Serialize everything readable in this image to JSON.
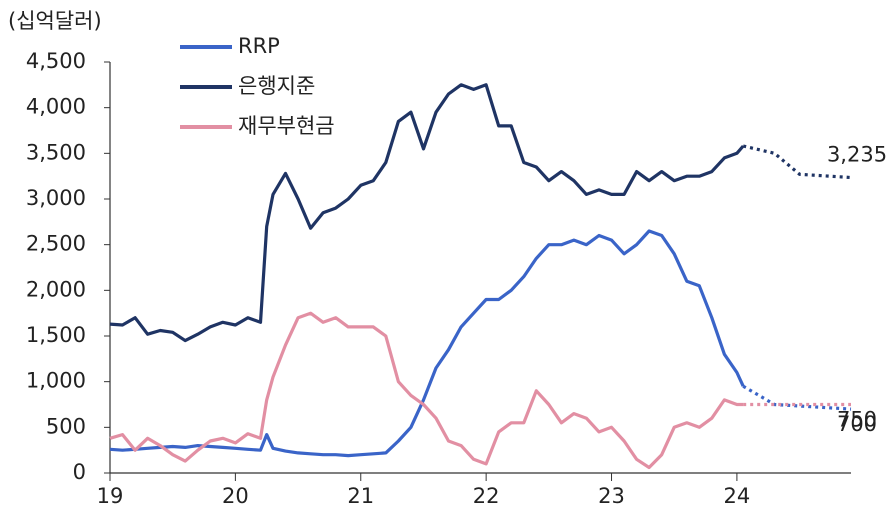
{
  "chart_data": {
    "type": "line",
    "y_axis_label": "(십억달러)",
    "x": [
      19,
      19.1,
      19.2,
      19.3,
      19.4,
      19.5,
      19.6,
      19.7,
      19.8,
      19.9,
      20,
      20.1,
      20.2,
      20.25,
      20.3,
      20.4,
      20.5,
      20.6,
      20.7,
      20.8,
      20.9,
      21,
      21.1,
      21.2,
      21.3,
      21.4,
      21.5,
      21.6,
      21.7,
      21.8,
      21.9,
      22,
      22.1,
      22.2,
      22.3,
      22.4,
      22.5,
      22.6,
      22.7,
      22.8,
      22.9,
      23,
      23.1,
      23.2,
      23.3,
      23.4,
      23.5,
      23.6,
      23.7,
      23.8,
      23.9,
      24,
      24.05
    ],
    "series": [
      {
        "name": "RRP",
        "color": "#3a64c8",
        "values": [
          260,
          250,
          260,
          270,
          280,
          290,
          280,
          300,
          290,
          280,
          270,
          260,
          250,
          420,
          270,
          240,
          220,
          210,
          200,
          200,
          190,
          200,
          210,
          220,
          350,
          500,
          800,
          1150,
          1350,
          1600,
          1750,
          1900,
          1900,
          2000,
          2150,
          2350,
          2500,
          2500,
          2550,
          2500,
          2600,
          2550,
          2400,
          2500,
          2650,
          2600,
          2400,
          2100,
          2050,
          1700,
          1300,
          1100,
          950
        ],
        "projection": {
          "x": [
            24.05,
            24.3,
            24.91
          ],
          "values": [
            950,
            750,
            700
          ],
          "value_labels": [
            null,
            null,
            "700"
          ]
        }
      },
      {
        "name": "은행지준",
        "color": "#1f3464",
        "values": [
          1630,
          1620,
          1700,
          1520,
          1560,
          1540,
          1450,
          1520,
          1600,
          1650,
          1620,
          1700,
          1650,
          2700,
          3050,
          3280,
          3000,
          2680,
          2850,
          2900,
          3000,
          3150,
          3200,
          3400,
          3850,
          3950,
          3550,
          3950,
          4150,
          4250,
          4200,
          4250,
          3800,
          3800,
          3400,
          3350,
          3200,
          3300,
          3200,
          3050,
          3100,
          3050,
          3050,
          3300,
          3200,
          3300,
          3200,
          3250,
          3250,
          3300,
          3450,
          3500,
          3580
        ],
        "projection": {
          "x": [
            24.05,
            24.3,
            24.5,
            24.91
          ],
          "values": [
            3580,
            3500,
            3270,
            3235
          ],
          "value_labels": [
            null,
            null,
            null,
            "3,235"
          ]
        }
      },
      {
        "name": "재무부현금",
        "color": "#e28fa3",
        "values": [
          380,
          420,
          250,
          380,
          300,
          200,
          130,
          250,
          350,
          380,
          330,
          430,
          380,
          800,
          1050,
          1400,
          1700,
          1750,
          1650,
          1700,
          1600,
          1600,
          1600,
          1500,
          1000,
          850,
          750,
          600,
          350,
          300,
          150,
          100,
          450,
          550,
          550,
          900,
          750,
          550,
          650,
          600,
          450,
          500,
          350,
          150,
          60,
          200,
          500,
          550,
          500,
          600,
          800,
          750,
          750
        ],
        "projection": {
          "x": [
            24.05,
            24.91
          ],
          "values": [
            750,
            750
          ],
          "value_labels": [
            null,
            "750"
          ]
        }
      }
    ],
    "xlim": [
      19,
      24.91
    ],
    "xticks": [
      19,
      20,
      21,
      22,
      23,
      24
    ],
    "ylim": [
      0,
      4500
    ],
    "yticks": [
      0,
      500,
      {
        "value": 1000,
        "label": "1,000"
      },
      {
        "value": 1500,
        "label": "1,500"
      },
      {
        "value": 2000,
        "label": "2,000"
      },
      {
        "value": 2500,
        "label": "2,500"
      },
      {
        "value": 3000,
        "label": "3,000"
      },
      {
        "value": 3500,
        "label": "3,500"
      },
      {
        "value": 4000,
        "label": "4,000"
      },
      {
        "value": 4500,
        "label": "4,500"
      }
    ],
    "grid": false
  }
}
